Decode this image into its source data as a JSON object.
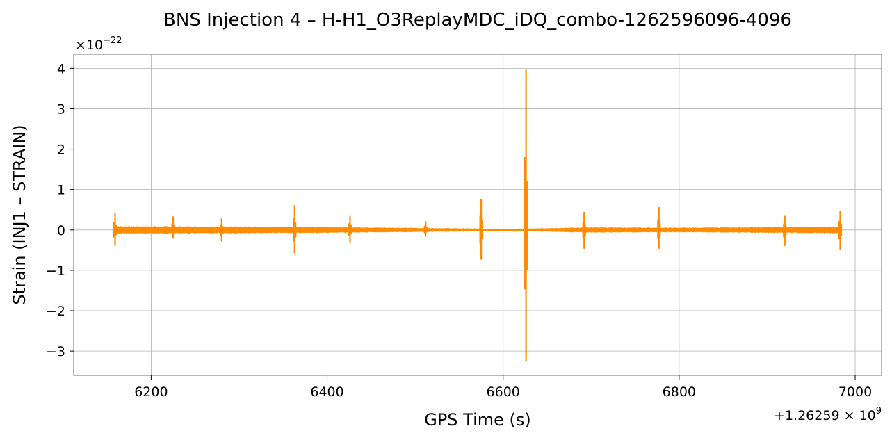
{
  "chart_data": {
    "type": "line",
    "title": "BNS Injection 4 – H-H1_O3ReplayMDC_iDQ_combo-1262596096-4096",
    "xlabel": "GPS Time (s)",
    "ylabel": "Strain (INJ1 – STRAIN)",
    "x_offset_label": "+1.26259 × 10^9",
    "y_scale_label": "×10^−22",
    "xlim": [
      6112,
      7030
    ],
    "ylim": [
      -3.6,
      4.35
    ],
    "x_ticks": [
      6200,
      6400,
      6600,
      6800,
      7000
    ],
    "x_tick_labels": [
      "6200",
      "6400",
      "6600",
      "6800",
      "7000"
    ],
    "y_ticks": [
      -3,
      -2,
      -1,
      0,
      1,
      2,
      3,
      4
    ],
    "y_tick_labels": [
      "−3",
      "−2",
      "−1",
      "0",
      "1",
      "2",
      "3",
      "4"
    ],
    "grid": true,
    "line_color": "#ff8c00",
    "series": [
      {
        "x_range": [
          6157,
          6984
        ],
        "baseline_envelope": [
          {
            "x": 6160,
            "amp": 0.1
          },
          {
            "x": 6400,
            "amp": 0.08
          },
          {
            "x": 6520,
            "amp": 0.05
          },
          {
            "x": 6610,
            "amp": 0.03
          },
          {
            "x": 6700,
            "amp": 0.07
          },
          {
            "x": 6800,
            "amp": 0.06
          },
          {
            "x": 6984,
            "amp": 0.09
          }
        ],
        "spikes": [
          {
            "x": 6159,
            "high": 0.4,
            "low": -0.38
          },
          {
            "x": 6225,
            "high": 0.32,
            "low": -0.2
          },
          {
            "x": 6280,
            "high": 0.27,
            "low": -0.27
          },
          {
            "x": 6363,
            "high": 0.6,
            "low": -0.57
          },
          {
            "x": 6426,
            "high": 0.33,
            "low": -0.3
          },
          {
            "x": 6512,
            "high": 0.2,
            "low": -0.15
          },
          {
            "x": 6575,
            "high": 0.75,
            "low": -0.72
          },
          {
            "x": 6626,
            "high": 3.97,
            "low": -3.23
          },
          {
            "x": 6692,
            "high": 0.43,
            "low": -0.45
          },
          {
            "x": 6777,
            "high": 0.55,
            "low": -0.45
          },
          {
            "x": 6920,
            "high": 0.33,
            "low": -0.38
          },
          {
            "x": 6983,
            "high": 0.46,
            "low": -0.47
          }
        ]
      }
    ]
  }
}
